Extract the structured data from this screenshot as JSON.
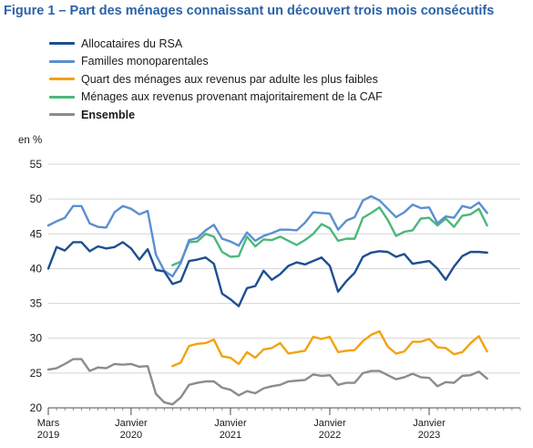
{
  "figure_title": "Figure 1 – Part des ménages connaissant un découvert trois mois consécutifs",
  "chart_data": {
    "type": "line",
    "title": "Figure 1 – Part des ménages connaissant un découvert trois mois consécutifs",
    "ylabel": "en %",
    "ylim": [
      20,
      55
    ],
    "yticks": [
      20,
      25,
      30,
      35,
      40,
      45,
      50,
      55
    ],
    "grid": "horizontal",
    "legend_position": "top-left",
    "x_start": "2019-03",
    "x_end": "2023-12",
    "x_ticks": [
      {
        "x": "2019-03",
        "line1": "Mars",
        "line2": "2019"
      },
      {
        "x": "2020-01",
        "line1": "Janvier",
        "line2": "2020"
      },
      {
        "x": "2021-01",
        "line1": "Janvier",
        "line2": "2021"
      },
      {
        "x": "2022-01",
        "line1": "Janvier",
        "line2": "2022"
      },
      {
        "x": "2023-01",
        "line1": "Janvier",
        "line2": "2023"
      }
    ],
    "series": [
      {
        "name": "Allocataires du RSA",
        "color": "#1d4f91",
        "bold": false,
        "values": [
          40.0,
          43.1,
          42.6,
          43.8,
          43.8,
          42.5,
          43.2,
          42.9,
          43.1,
          43.8,
          42.9,
          41.3,
          42.8,
          39.8,
          39.6,
          37.8,
          38.2,
          41.1,
          41.3,
          41.6,
          40.7,
          36.4,
          35.6,
          34.6,
          37.2,
          37.5,
          39.7,
          38.4,
          39.2,
          40.4,
          40.9,
          40.6,
          41.1,
          41.6,
          40.4,
          36.7,
          38.2,
          39.4,
          41.7,
          42.3,
          42.5,
          42.4,
          41.7,
          42.1,
          40.7,
          40.9,
          41.1,
          40.0,
          38.4,
          40.3,
          41.8,
          42.4,
          42.4,
          42.3
        ]
      },
      {
        "name": "Familles monoparentales",
        "color": "#5b8fd0",
        "bold": false,
        "values": [
          46.2,
          46.8,
          47.3,
          49.0,
          49.0,
          46.5,
          46.0,
          45.9,
          48.1,
          49.0,
          48.6,
          47.8,
          48.3,
          42.0,
          39.7,
          38.9,
          40.8,
          44.1,
          44.4,
          45.5,
          46.3,
          44.3,
          43.9,
          43.3,
          45.2,
          44.0,
          44.7,
          45.1,
          45.6,
          45.6,
          45.5,
          46.6,
          48.1,
          48.0,
          47.9,
          45.6,
          46.9,
          47.4,
          49.8,
          50.4,
          49.8,
          48.6,
          47.4,
          48.1,
          49.2,
          48.7,
          48.8,
          46.5,
          47.5,
          47.3,
          49.0,
          48.7,
          49.5,
          48.0
        ]
      },
      {
        "name": "Quart des ménages aux revenus par adulte les plus faibles",
        "color": "#f2a30f",
        "bold": false,
        "values": [
          null,
          null,
          null,
          null,
          null,
          null,
          null,
          null,
          null,
          null,
          null,
          null,
          null,
          null,
          null,
          26.0,
          26.5,
          28.9,
          29.2,
          29.3,
          29.8,
          27.4,
          27.2,
          26.3,
          28.0,
          27.2,
          28.4,
          28.6,
          29.3,
          27.8,
          28.0,
          28.2,
          30.2,
          29.9,
          30.2,
          28.0,
          28.2,
          28.3,
          29.6,
          30.5,
          31.0,
          28.8,
          27.8,
          28.1,
          29.5,
          29.5,
          29.9,
          28.7,
          28.6,
          27.7,
          28.0,
          29.3,
          30.3,
          28.1
        ]
      },
      {
        "name": "Ménages aux revenus provenant majoritairement de la CAF",
        "color": "#4cb87a",
        "bold": false,
        "values": [
          null,
          null,
          null,
          null,
          null,
          null,
          null,
          null,
          null,
          null,
          null,
          null,
          null,
          null,
          null,
          40.5,
          41.0,
          43.8,
          43.9,
          45.0,
          44.6,
          42.4,
          41.7,
          41.8,
          44.6,
          43.2,
          44.2,
          44.1,
          44.6,
          44.0,
          43.4,
          44.1,
          45.0,
          46.4,
          45.8,
          44.0,
          44.3,
          44.3,
          47.3,
          48.0,
          48.8,
          47.0,
          44.7,
          45.3,
          45.5,
          47.2,
          47.3,
          46.2,
          47.2,
          46.0,
          47.6,
          47.8,
          48.6,
          46.2
        ]
      },
      {
        "name": "Ensemble",
        "color": "#8c8c8c",
        "bold": true,
        "values": [
          25.5,
          25.7,
          26.3,
          27.0,
          27.0,
          25.3,
          25.8,
          25.7,
          26.3,
          26.2,
          26.3,
          25.9,
          26.0,
          22.0,
          20.8,
          20.5,
          21.5,
          23.3,
          23.6,
          23.8,
          23.8,
          22.9,
          22.6,
          21.8,
          22.4,
          22.1,
          22.8,
          23.1,
          23.3,
          23.8,
          23.9,
          24.0,
          24.8,
          24.6,
          24.7,
          23.3,
          23.6,
          23.6,
          25.0,
          25.3,
          25.3,
          24.7,
          24.1,
          24.4,
          24.9,
          24.4,
          24.3,
          23.1,
          23.7,
          23.6,
          24.6,
          24.7,
          25.2,
          24.2
        ]
      }
    ]
  }
}
